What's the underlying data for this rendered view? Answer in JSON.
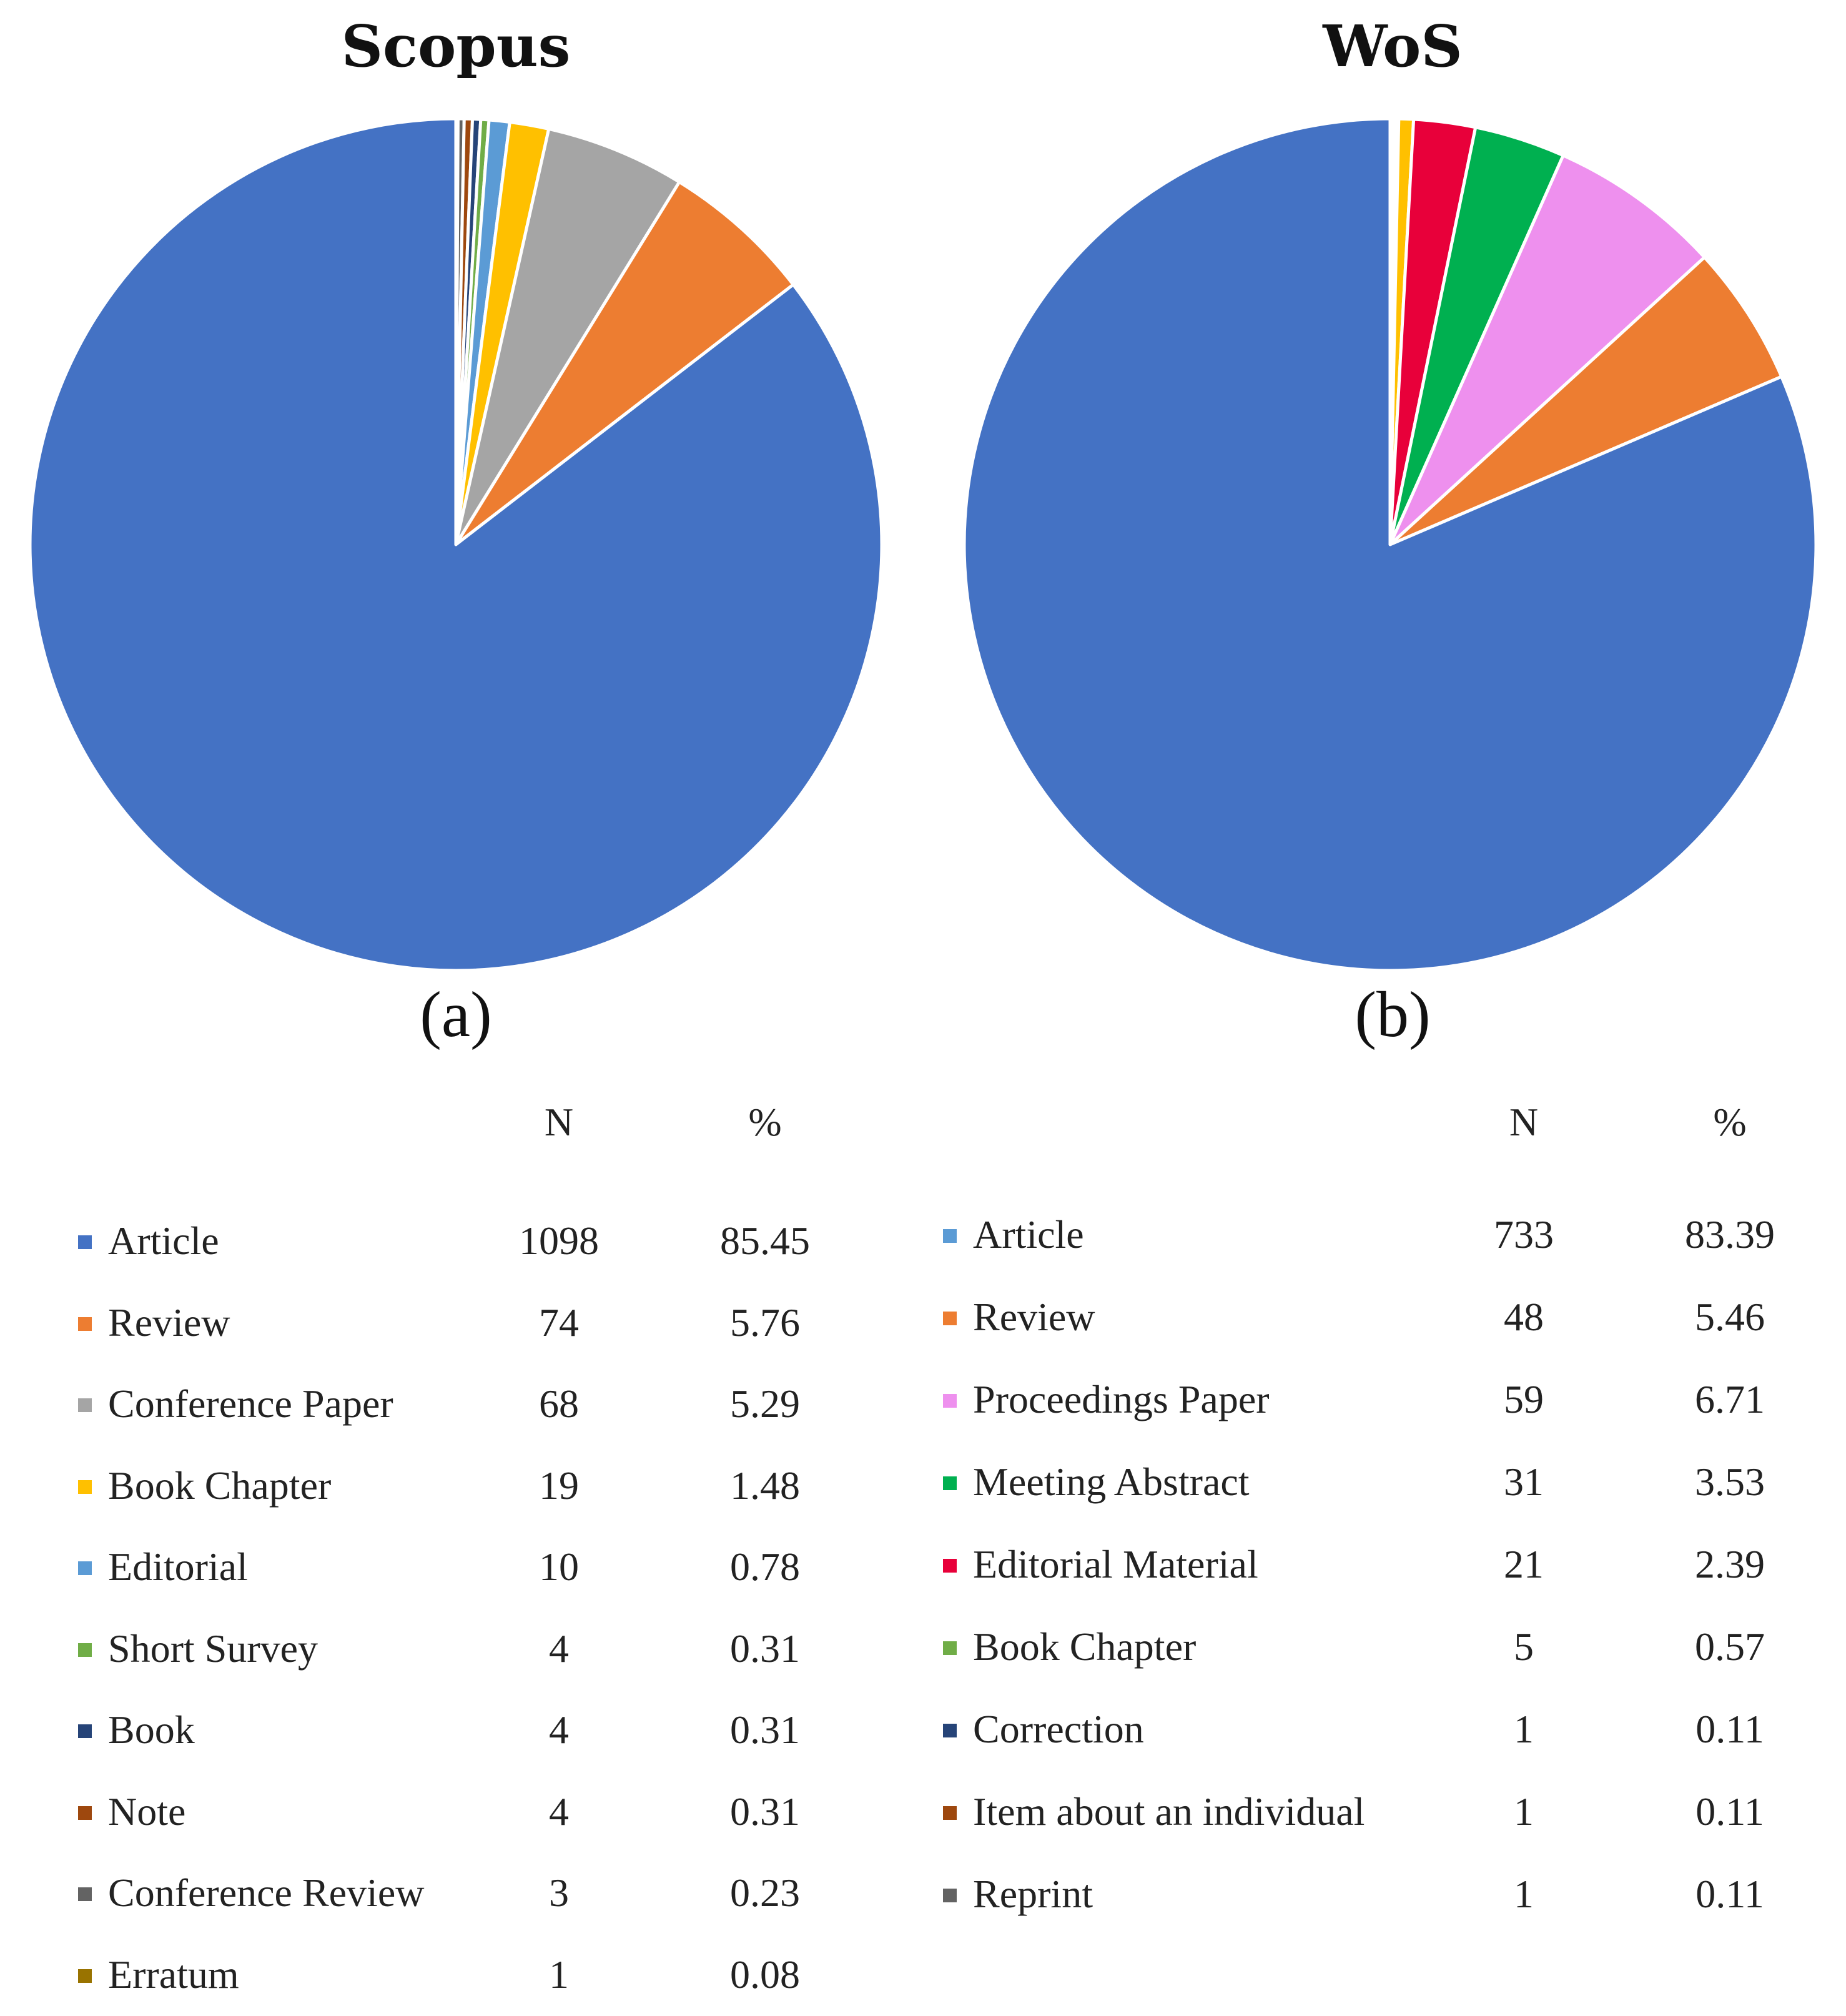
{
  "chart_data": [
    {
      "type": "pie",
      "title": "Scopus",
      "caption": "(a)",
      "col_n": "N",
      "col_pct": "%",
      "series": [
        {
          "label": "Article",
          "n": "1098",
          "pct": "85.45",
          "value": 85.45,
          "color": "#4472C4"
        },
        {
          "label": "Review",
          "n": "74",
          "pct": "5.76",
          "value": 5.76,
          "color": "#ED7D31"
        },
        {
          "label": "Conference Paper",
          "n": "68",
          "pct": "5.29",
          "value": 5.29,
          "color": "#A5A5A5"
        },
        {
          "label": "Book Chapter",
          "n": "19",
          "pct": "1.48",
          "value": 1.48,
          "color": "#FFC000"
        },
        {
          "label": "Editorial",
          "n": "10",
          "pct": "0.78",
          "value": 0.78,
          "color": "#5B9BD5"
        },
        {
          "label": "Short Survey",
          "n": "4",
          "pct": "0.31",
          "value": 0.31,
          "color": "#70AD47"
        },
        {
          "label": "Book",
          "n": "4",
          "pct": "0.31",
          "value": 0.31,
          "color": "#264478"
        },
        {
          "label": "Note",
          "n": "4",
          "pct": "0.31",
          "value": 0.31,
          "color": "#9E480E"
        },
        {
          "label": "Conference Review",
          "n": "3",
          "pct": "0.23",
          "value": 0.23,
          "color": "#636363"
        },
        {
          "label": "Erratum",
          "n": "1",
          "pct": "0.08",
          "value": 0.08,
          "color": "#997300"
        }
      ]
    },
    {
      "type": "pie",
      "title": "WoS",
      "caption": "(b)",
      "col_n": "N",
      "col_pct": "%",
      "series": [
        {
          "label": "Article",
          "n": "733",
          "pct": "83.39",
          "value": 83.39,
          "color": "#4472C4"
        },
        {
          "label": "Review",
          "n": "48",
          "pct": "5.46",
          "value": 5.46,
          "color": "#ED7D31"
        },
        {
          "label": "Proceedings Paper",
          "n": "59",
          "pct": "6.71",
          "value": 6.71,
          "color": "#EE90EE"
        },
        {
          "label": "Meeting Abstract",
          "n": "31",
          "pct": "3.53",
          "value": 3.53,
          "color": "#00B050"
        },
        {
          "label": "Editorial Material",
          "n": "21",
          "pct": "2.39",
          "value": 2.39,
          "color": "#E8003A"
        },
        {
          "label": "Book Chapter",
          "n": "5",
          "pct": "0.57",
          "value": 0.57,
          "color": "#FFC000"
        },
        {
          "label": "Correction",
          "n": "1",
          "pct": "0.11",
          "value": 0.11,
          "color": "#264478"
        },
        {
          "label": "Item about an individual",
          "n": "1",
          "pct": "0.11",
          "value": 0.11,
          "color": "#9E480E"
        },
        {
          "label": "Reprint",
          "n": "1",
          "pct": "0.11",
          "value": 0.11,
          "color": "#636363"
        }
      ],
      "legend_swatch_overrides": {
        "0": "#5B9BD5",
        "5": "#70AD47"
      }
    }
  ]
}
